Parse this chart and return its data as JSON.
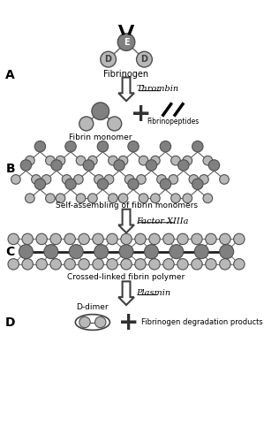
{
  "bg_color": "#ffffff",
  "dark_node_color": "#808080",
  "light_node_color": "#b8b8b8",
  "label_A": "A",
  "label_B": "B",
  "label_C": "C",
  "label_D": "D",
  "fibrinogen_label": "Fibrinogen",
  "thrombin_label": "Thrombin",
  "fibrin_monomer_label": "Fibrin monomer",
  "fibrinopeptides_label": "Fibrinopeptides",
  "self_assembling_label": "Self-assembling of fibrin monomers",
  "factor_label": "Factor XIIIa",
  "crosslinked_label": "Crossed-linked fibrin polymer",
  "plasmin_label": "Plasmin",
  "ddimer_label": "D-dimer",
  "fdp_label": "Fibrinogen degradation products"
}
